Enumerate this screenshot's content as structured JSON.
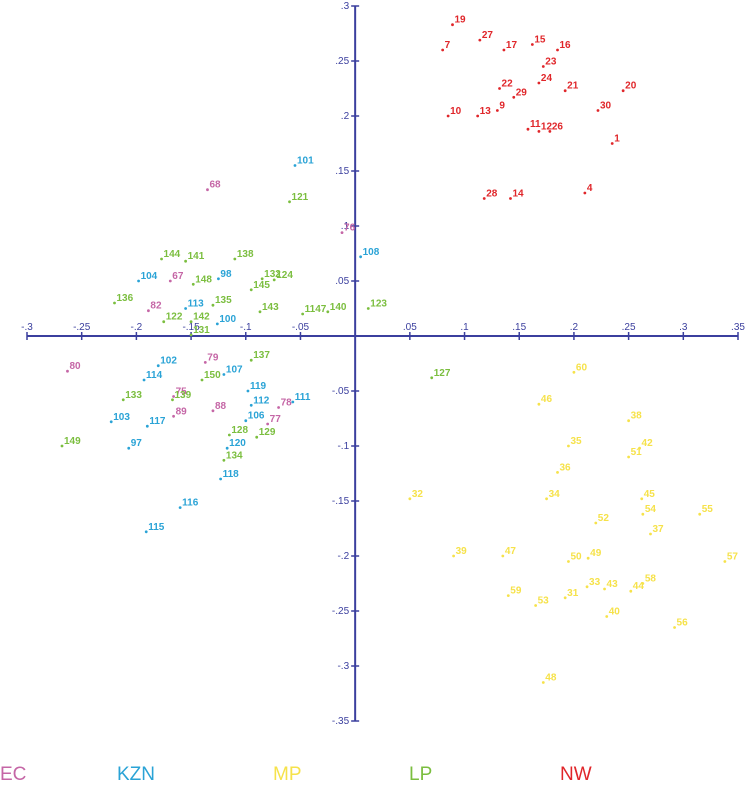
{
  "chart_data": {
    "type": "scatter",
    "title": "",
    "xlabel": "",
    "ylabel": "",
    "xlim": [
      -0.3,
      0.35
    ],
    "ylim": [
      -0.35,
      0.3
    ],
    "grid": false,
    "legend_position": "bottom",
    "x_ticks": [
      -0.3,
      -0.25,
      -0.2,
      -0.15,
      -0.1,
      -0.05,
      0.05,
      0.1,
      0.15,
      0.2,
      0.25,
      0.3,
      0.35
    ],
    "x_tick_labels": [
      "-.3",
      "-.25",
      "-.2",
      "-.15",
      "-.1",
      "-.05",
      ".05",
      ".1",
      ".15",
      ".2",
      ".25",
      ".3",
      ".35"
    ],
    "y_ticks": [
      0.3,
      0.25,
      0.2,
      0.15,
      0.1,
      0.05,
      -0.05,
      -0.1,
      -0.15,
      -0.2,
      -0.25,
      -0.3,
      -0.35
    ],
    "y_tick_labels": [
      ".3",
      ".25",
      ".2",
      ".15",
      ".1",
      ".05",
      "-.05",
      "-.1",
      "-.15",
      "-.2",
      "-.25",
      "-.3",
      "-.35"
    ],
    "series": [
      {
        "name": "EC",
        "color": "#c566a6",
        "points": [
          {
            "label": "68",
            "x": -0.135,
            "y": 0.133
          },
          {
            "label": "76",
            "x": -0.012,
            "y": 0.094
          },
          {
            "label": "67",
            "x": -0.169,
            "y": 0.05
          },
          {
            "label": "82",
            "x": -0.189,
            "y": 0.023
          },
          {
            "label": "80",
            "x": -0.263,
            "y": -0.032
          },
          {
            "label": "79",
            "x": -0.137,
            "y": -0.024
          },
          {
            "label": "78",
            "x": -0.07,
            "y": -0.065
          },
          {
            "label": "77",
            "x": -0.08,
            "y": -0.08
          },
          {
            "label": "88",
            "x": -0.13,
            "y": -0.068
          },
          {
            "label": "89",
            "x": -0.166,
            "y": -0.073
          },
          {
            "label": "75",
            "x": -0.166,
            "y": -0.055
          }
        ]
      },
      {
        "name": "KZN",
        "color": "#2aa3d6",
        "points": [
          {
            "label": "101",
            "x": -0.055,
            "y": 0.155
          },
          {
            "label": "108",
            "x": 0.005,
            "y": 0.072
          },
          {
            "label": "104",
            "x": -0.198,
            "y": 0.05
          },
          {
            "label": "98",
            "x": -0.125,
            "y": 0.052
          },
          {
            "label": "113",
            "x": -0.155,
            "y": 0.025
          },
          {
            "label": "100",
            "x": -0.126,
            "y": 0.011
          },
          {
            "label": "102",
            "x": -0.18,
            "y": -0.027
          },
          {
            "label": "114",
            "x": -0.193,
            "y": -0.04
          },
          {
            "label": "107",
            "x": -0.12,
            "y": -0.035
          },
          {
            "label": "119",
            "x": -0.098,
            "y": -0.05
          },
          {
            "label": "112",
            "x": -0.095,
            "y": -0.063
          },
          {
            "label": "111",
            "x": -0.057,
            "y": -0.06
          },
          {
            "label": "106",
            "x": -0.1,
            "y": -0.077
          },
          {
            "label": "120",
            "x": -0.117,
            "y": -0.102
          },
          {
            "label": "118",
            "x": -0.123,
            "y": -0.13
          },
          {
            "label": "103",
            "x": -0.223,
            "y": -0.078
          },
          {
            "label": "117",
            "x": -0.19,
            "y": -0.082
          },
          {
            "label": "97",
            "x": -0.207,
            "y": -0.102
          },
          {
            "label": "116",
            "x": -0.16,
            "y": -0.156
          },
          {
            "label": "115",
            "x": -0.191,
            "y": -0.178
          }
        ]
      },
      {
        "name": "MP",
        "color": "#f6e24a",
        "points": [
          {
            "label": "60",
            "x": 0.2,
            "y": -0.033
          },
          {
            "label": "46",
            "x": 0.168,
            "y": -0.062
          },
          {
            "label": "38",
            "x": 0.25,
            "y": -0.077
          },
          {
            "label": "35",
            "x": 0.195,
            "y": -0.1
          },
          {
            "label": "42",
            "x": 0.26,
            "y": -0.102
          },
          {
            "label": "51",
            "x": 0.25,
            "y": -0.11
          },
          {
            "label": "36",
            "x": 0.185,
            "y": -0.124
          },
          {
            "label": "32",
            "x": 0.05,
            "y": -0.148
          },
          {
            "label": "34",
            "x": 0.175,
            "y": -0.148
          },
          {
            "label": "45",
            "x": 0.262,
            "y": -0.148
          },
          {
            "label": "54",
            "x": 0.263,
            "y": -0.162
          },
          {
            "label": "55",
            "x": 0.315,
            "y": -0.162
          },
          {
            "label": "52",
            "x": 0.22,
            "y": -0.17
          },
          {
            "label": "37",
            "x": 0.27,
            "y": -0.18
          },
          {
            "label": "39",
            "x": 0.09,
            "y": -0.2
          },
          {
            "label": "47",
            "x": 0.135,
            "y": -0.2
          },
          {
            "label": "50",
            "x": 0.195,
            "y": -0.205
          },
          {
            "label": "49",
            "x": 0.213,
            "y": -0.202
          },
          {
            "label": "57",
            "x": 0.338,
            "y": -0.205
          },
          {
            "label": "58",
            "x": 0.263,
            "y": -0.225
          },
          {
            "label": "33",
            "x": 0.212,
            "y": -0.228
          },
          {
            "label": "43",
            "x": 0.228,
            "y": -0.23
          },
          {
            "label": "44",
            "x": 0.252,
            "y": -0.232
          },
          {
            "label": "59",
            "x": 0.14,
            "y": -0.236
          },
          {
            "label": "31",
            "x": 0.192,
            "y": -0.238
          },
          {
            "label": "53",
            "x": 0.165,
            "y": -0.245
          },
          {
            "label": "40",
            "x": 0.23,
            "y": -0.255
          },
          {
            "label": "56",
            "x": 0.292,
            "y": -0.265
          },
          {
            "label": "48",
            "x": 0.172,
            "y": -0.315
          }
        ]
      },
      {
        "name": "LP",
        "color": "#7bbe3f",
        "points": [
          {
            "label": "121",
            "x": -0.06,
            "y": 0.122
          },
          {
            "label": "144",
            "x": -0.177,
            "y": 0.07
          },
          {
            "label": "141",
            "x": -0.155,
            "y": 0.068
          },
          {
            "label": "138",
            "x": -0.11,
            "y": 0.07
          },
          {
            "label": "132",
            "x": -0.085,
            "y": 0.052
          },
          {
            "label": "124",
            "x": -0.074,
            "y": 0.051
          },
          {
            "label": "148",
            "x": -0.148,
            "y": 0.047
          },
          {
            "label": "145",
            "x": -0.095,
            "y": 0.042
          },
          {
            "label": "136",
            "x": -0.22,
            "y": 0.03
          },
          {
            "label": "135",
            "x": -0.13,
            "y": 0.028
          },
          {
            "label": "143",
            "x": -0.087,
            "y": 0.022
          },
          {
            "label": "1147",
            "x": -0.048,
            "y": 0.02
          },
          {
            "label": "140",
            "x": -0.025,
            "y": 0.022
          },
          {
            "label": "123",
            "x": 0.012,
            "y": 0.025
          },
          {
            "label": "122",
            "x": -0.175,
            "y": 0.013
          },
          {
            "label": "142",
            "x": -0.15,
            "y": 0.013
          },
          {
            "label": "131",
            "x": -0.15,
            "y": 0.001
          },
          {
            "label": "137",
            "x": -0.095,
            "y": -0.022
          },
          {
            "label": "150",
            "x": -0.14,
            "y": -0.04
          },
          {
            "label": "127",
            "x": 0.07,
            "y": -0.038
          },
          {
            "label": "133",
            "x": -0.212,
            "y": -0.058
          },
          {
            "label": "139",
            "x": -0.167,
            "y": -0.058
          },
          {
            "label": "128",
            "x": -0.115,
            "y": -0.09
          },
          {
            "label": "129",
            "x": -0.09,
            "y": -0.092
          },
          {
            "label": "134",
            "x": -0.12,
            "y": -0.113
          },
          {
            "label": "149",
            "x": -0.268,
            "y": -0.1
          }
        ]
      },
      {
        "name": "NW",
        "color": "#e0262a",
        "points": [
          {
            "label": "19",
            "x": 0.089,
            "y": 0.283
          },
          {
            "label": "27",
            "x": 0.114,
            "y": 0.269
          },
          {
            "label": "7",
            "x": 0.08,
            "y": 0.26
          },
          {
            "label": "17",
            "x": 0.136,
            "y": 0.26
          },
          {
            "label": "15",
            "x": 0.162,
            "y": 0.265
          },
          {
            "label": "16",
            "x": 0.185,
            "y": 0.26
          },
          {
            "label": "23",
            "x": 0.172,
            "y": 0.245
          },
          {
            "label": "24",
            "x": 0.168,
            "y": 0.23
          },
          {
            "label": "22",
            "x": 0.132,
            "y": 0.225
          },
          {
            "label": "29",
            "x": 0.145,
            "y": 0.217
          },
          {
            "label": "21",
            "x": 0.192,
            "y": 0.223
          },
          {
            "label": "20",
            "x": 0.245,
            "y": 0.223
          },
          {
            "label": "9",
            "x": 0.13,
            "y": 0.205
          },
          {
            "label": "30",
            "x": 0.222,
            "y": 0.205
          },
          {
            "label": "10",
            "x": 0.085,
            "y": 0.2
          },
          {
            "label": "13",
            "x": 0.112,
            "y": 0.2
          },
          {
            "label": "11",
            "x": 0.158,
            "y": 0.188
          },
          {
            "label": "12",
            "x": 0.168,
            "y": 0.186
          },
          {
            "label": "26",
            "x": 0.178,
            "y": 0.186
          },
          {
            "label": "1",
            "x": 0.235,
            "y": 0.175
          },
          {
            "label": "4",
            "x": 0.21,
            "y": 0.13
          },
          {
            "label": "28",
            "x": 0.118,
            "y": 0.125
          },
          {
            "label": "14",
            "x": 0.142,
            "y": 0.125
          }
        ]
      }
    ]
  },
  "legend": {
    "ec": "EC",
    "kzn": "KZN",
    "mp": "MP",
    "lp": "LP",
    "nw": "NW"
  }
}
